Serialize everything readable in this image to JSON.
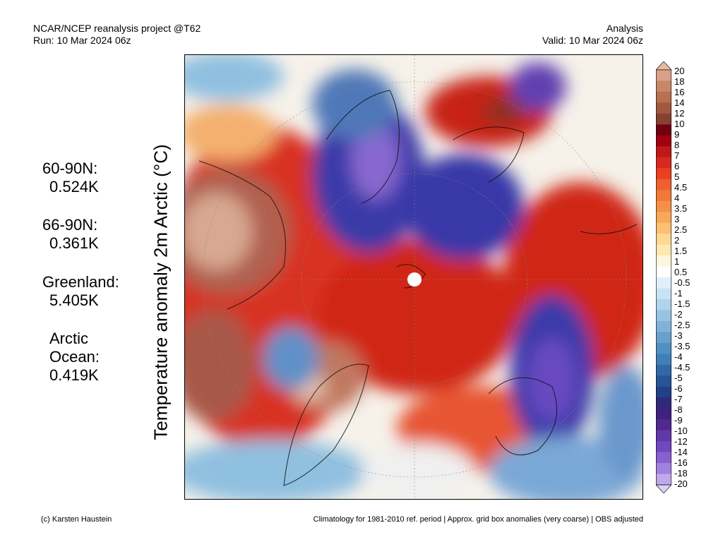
{
  "header_left": [
    "NCAR/NCEP reanalysis project @T62",
    "Run: 10 Mar 2024 06z"
  ],
  "header_right": [
    "Analysis",
    "Valid: 10 Mar 2024 06z"
  ],
  "y_label": "Temperature anomaly 2m Arctic (°C)",
  "regions": [
    {
      "name": "60-90N:",
      "value": "0.524K"
    },
    {
      "name": "66-90N:",
      "value": "0.361K"
    },
    {
      "name": "Greenland:",
      "value": "5.405K"
    },
    {
      "name": "Arctic Ocean:",
      "value": "0.419K",
      "name_lines": [
        "Arctic",
        "Ocean:"
      ]
    }
  ],
  "colorbar": {
    "labels": [
      "20",
      "18",
      "16",
      "14",
      "12",
      "10",
      "9",
      "8",
      "7",
      "6",
      "5",
      "4.5",
      "4",
      "3.5",
      "3",
      "2.5",
      "2",
      "1.5",
      "1",
      "0.5",
      "-0.5",
      "-1",
      "-1.5",
      "-2",
      "-2.5",
      "-3",
      "-3.5",
      "-4",
      "-4.5",
      "-5",
      "-6",
      "-7",
      "-8",
      "-9",
      "-10",
      "-12",
      "-14",
      "-16",
      "-18",
      "-20"
    ],
    "colors": [
      "#e8b8a0",
      "#d9a088",
      "#c88868",
      "#b87050",
      "#a05840",
      "#884030",
      "#700010",
      "#a00010",
      "#c01818",
      "#d82820",
      "#e84020",
      "#ee6030",
      "#f07838",
      "#f49048",
      "#f8a858",
      "#fbc070",
      "#fcd890",
      "#fde8b0",
      "#fef6dc",
      "#ffffff",
      "#e0f0fa",
      "#c8e4f4",
      "#b0d4ec",
      "#98c4e2",
      "#80b2d8",
      "#68a0cc",
      "#5090c4",
      "#4080b8",
      "#3068a8",
      "#285498",
      "#204088",
      "#302878",
      "#402080",
      "#502890",
      "#6038a8",
      "#7048c0",
      "#8860d0",
      "#a080e0",
      "#c0a8ec",
      "#dcd0f8"
    ]
  },
  "footer_left": "(c) Karsten Haustein",
  "footer_right": "Climatology for 1981-2010 ref. period | Approx. grid box anomalies (very coarse) | OBS adjusted"
}
